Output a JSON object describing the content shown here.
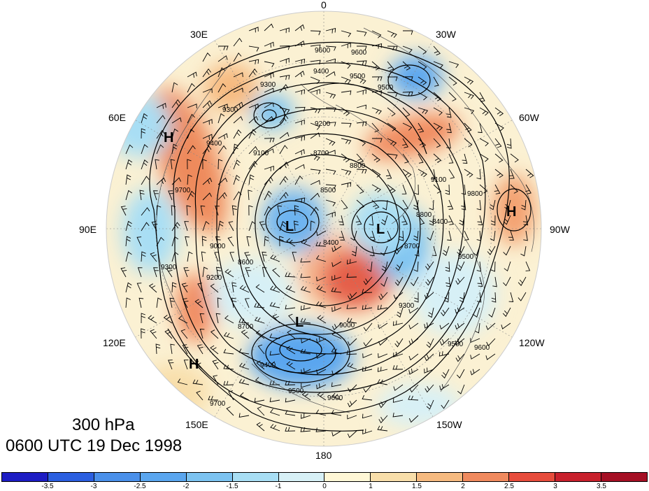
{
  "title": {
    "level": "300 hPa",
    "datetime": "0600 UTC 19 Dec 1998"
  },
  "longitude_labels": {
    "lon_0": "0",
    "lon_30w": "30W",
    "lon_60w": "60W",
    "lon_90w": "90W",
    "lon_120w": "120W",
    "lon_150w": "150W",
    "lon_180": "180",
    "lon_150e": "150E",
    "lon_120e": "120E",
    "lon_90e": "90E",
    "lon_60e": "60E",
    "lon_30e": "30E"
  },
  "pressure_centers": [
    {
      "label": "H",
      "region": "Ural / 60E"
    },
    {
      "label": "H",
      "region": "Pacific / 150E"
    },
    {
      "label": "H",
      "region": "Central North America / 90W"
    },
    {
      "label": "L",
      "region": "Siberia"
    },
    {
      "label": "L",
      "region": "Arctic / Greenland side"
    },
    {
      "label": "L",
      "region": "North Pacific"
    }
  ],
  "contour_labels": [
    "9600",
    "9600",
    "9500",
    "9400",
    "9300",
    "9200",
    "9100",
    "8700",
    "8600",
    "8500",
    "8400",
    "9400",
    "9300",
    "9000",
    "8800",
    "8700",
    "9700",
    "9600",
    "9500",
    "9400",
    "9300",
    "9200",
    "9000",
    "8800",
    "8700",
    "8400",
    "9300",
    "9100",
    "9600",
    "9800",
    "9500",
    "9700",
    "9500",
    "9500"
  ],
  "colorbar": {
    "levels": [
      "-3.5",
      "-3",
      "-2.5",
      "-2",
      "-1.5",
      "-1",
      "0",
      "1",
      "1.5",
      "2",
      "2.5",
      "3",
      "3.5"
    ],
    "colors": [
      "#1d1dc4",
      "#2b5fe0",
      "#4a90ea",
      "#5aa6ef",
      "#7cc3f1",
      "#a8def4",
      "#d7f0f6",
      "#fff7d6",
      "#f8deaa",
      "#f6ba80",
      "#f08a5e",
      "#e74c3c",
      "#c8202c",
      "#a50f24"
    ]
  },
  "colors": {
    "contour": "#000000",
    "coastline": "#555555",
    "background": "#ffffff"
  }
}
